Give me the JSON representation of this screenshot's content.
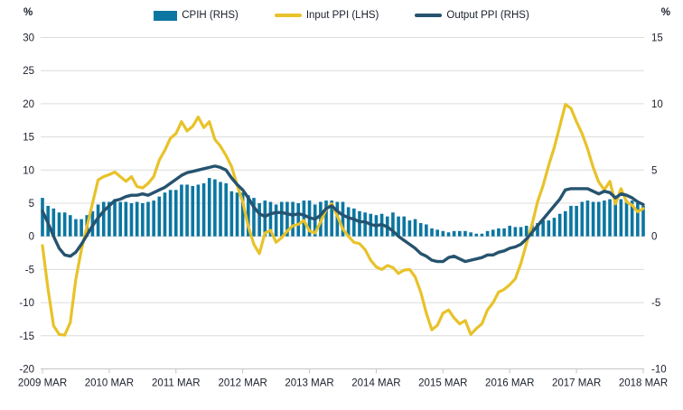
{
  "chart_data": {
    "type": "bar",
    "title": "",
    "frequency": "monthly",
    "x_start": "2009 MAR",
    "x_end": "2018 MAR",
    "n_points": 109,
    "x_tick_labels": [
      "2009 MAR",
      "2010 MAR",
      "2011 MAR",
      "2012 MAR",
      "2013 MAR",
      "2014 MAR",
      "2015 MAR",
      "2016 MAR",
      "2017 MAR",
      "2018 MAR"
    ],
    "left_axis": {
      "label": "%",
      "range": [
        -20,
        30
      ],
      "tick_step": 5,
      "ticks": [
        30,
        25,
        20,
        15,
        10,
        5,
        0,
        -5,
        -10,
        -15,
        -20
      ]
    },
    "right_axis": {
      "label": "%",
      "range": [
        -10,
        15
      ],
      "ticks": [
        15,
        10,
        5,
        0,
        -5,
        -10
      ]
    },
    "grid": true,
    "legend_position": "top-center",
    "background": "#ffffff",
    "grid_color": "#dcdcdc",
    "axis_line_color": "#c4c4c4",
    "text_color": "#1a1f2b",
    "series": [
      {
        "name": "CPIH (RHS)",
        "type": "bar",
        "axis": "right",
        "color": "#0b76a1",
        "values": [
          2.9,
          2.3,
          2.1,
          1.8,
          1.8,
          1.6,
          1.3,
          1.3,
          1.6,
          1.9,
          2.4,
          2.6,
          2.6,
          2.8,
          2.6,
          2.6,
          2.5,
          2.6,
          2.5,
          2.6,
          2.7,
          3.0,
          3.3,
          3.5,
          3.5,
          3.9,
          3.9,
          3.8,
          3.9,
          4.0,
          4.4,
          4.3,
          4.1,
          4.0,
          3.4,
          3.3,
          3.3,
          3.1,
          2.9,
          2.5,
          2.7,
          2.6,
          2.4,
          2.6,
          2.6,
          2.6,
          2.5,
          2.7,
          2.7,
          2.4,
          2.6,
          2.7,
          2.7,
          2.6,
          2.6,
          2.2,
          2.1,
          1.9,
          1.8,
          1.7,
          1.6,
          1.7,
          1.5,
          1.8,
          1.5,
          1.5,
          1.2,
          1.3,
          1.0,
          0.9,
          0.6,
          0.5,
          0.4,
          0.3,
          0.4,
          0.4,
          0.4,
          0.3,
          0.2,
          0.2,
          0.4,
          0.5,
          0.6,
          0.6,
          0.8,
          0.7,
          0.7,
          0.8,
          0.9,
          1.0,
          1.2,
          1.2,
          1.4,
          1.7,
          1.9,
          2.3,
          2.3,
          2.6,
          2.7,
          2.6,
          2.6,
          2.7,
          2.8,
          2.8,
          2.8,
          2.7,
          2.7,
          2.5,
          2.3
        ]
      },
      {
        "name": "Input PPI (LHS)",
        "type": "line",
        "axis": "left",
        "color": "#e8c229",
        "values": [
          -1.4,
          -8.0,
          -13.5,
          -14.8,
          -14.9,
          -13.0,
          -6.5,
          -2.0,
          1.5,
          5.0,
          8.5,
          9.0,
          9.3,
          9.7,
          9.0,
          8.3,
          9.0,
          7.5,
          7.3,
          8.0,
          9.0,
          11.5,
          13.0,
          14.8,
          15.5,
          17.3,
          15.9,
          16.6,
          18.0,
          16.4,
          17.3,
          14.6,
          13.6,
          12.2,
          10.5,
          7.7,
          5.2,
          1.5,
          -1.2,
          -2.6,
          0.5,
          0.9,
          -0.9,
          -0.2,
          0.8,
          1.6,
          1.8,
          2.4,
          0.8,
          0.5,
          2.2,
          4.1,
          4.9,
          3.1,
          1.1,
          0.0,
          -0.9,
          -1.1,
          -2.0,
          -3.6,
          -4.6,
          -5.0,
          -4.4,
          -4.7,
          -5.6,
          -5.1,
          -5.0,
          -6.1,
          -8.4,
          -11.6,
          -14.1,
          -13.4,
          -11.6,
          -11.1,
          -12.3,
          -13.2,
          -12.7,
          -14.8,
          -13.9,
          -13.2,
          -11.1,
          -10.0,
          -8.4,
          -8.0,
          -7.3,
          -6.4,
          -4.1,
          -1.1,
          1.8,
          5.2,
          7.7,
          10.7,
          13.4,
          16.6,
          19.9,
          19.3,
          17.3,
          15.5,
          13.2,
          10.4,
          8.2,
          7.0,
          8.3,
          4.9,
          7.2,
          5.2,
          4.7,
          3.7,
          4.2
        ]
      },
      {
        "name": "Output PPI (RHS)",
        "type": "line",
        "axis": "right",
        "color": "#26536f",
        "values": [
          1.9,
          1.0,
          0.0,
          -0.9,
          -1.4,
          -1.5,
          -1.2,
          -0.6,
          0.1,
          0.8,
          1.4,
          1.9,
          2.3,
          2.7,
          2.8,
          3.0,
          3.1,
          3.1,
          3.2,
          3.1,
          3.3,
          3.5,
          3.7,
          4.0,
          4.3,
          4.6,
          4.8,
          4.9,
          5.0,
          5.1,
          5.2,
          5.3,
          5.2,
          5.0,
          4.4,
          3.9,
          3.5,
          2.9,
          2.2,
          1.7,
          1.5,
          1.7,
          1.8,
          1.8,
          1.7,
          1.6,
          1.7,
          1.6,
          1.4,
          1.3,
          1.6,
          2.1,
          2.3,
          1.9,
          1.6,
          1.4,
          1.3,
          1.1,
          1.1,
          0.9,
          0.8,
          0.9,
          0.7,
          0.4,
          0.0,
          -0.3,
          -0.6,
          -0.9,
          -1.3,
          -1.5,
          -1.8,
          -1.9,
          -1.9,
          -1.6,
          -1.5,
          -1.7,
          -1.9,
          -1.8,
          -1.7,
          -1.6,
          -1.4,
          -1.4,
          -1.2,
          -1.1,
          -0.9,
          -0.8,
          -0.6,
          -0.2,
          0.3,
          0.8,
          1.3,
          1.8,
          2.3,
          2.8,
          3.5,
          3.6,
          3.6,
          3.6,
          3.6,
          3.4,
          3.2,
          3.4,
          3.3,
          2.9,
          3.2,
          3.1,
          2.9,
          2.6,
          2.4
        ]
      }
    ]
  }
}
